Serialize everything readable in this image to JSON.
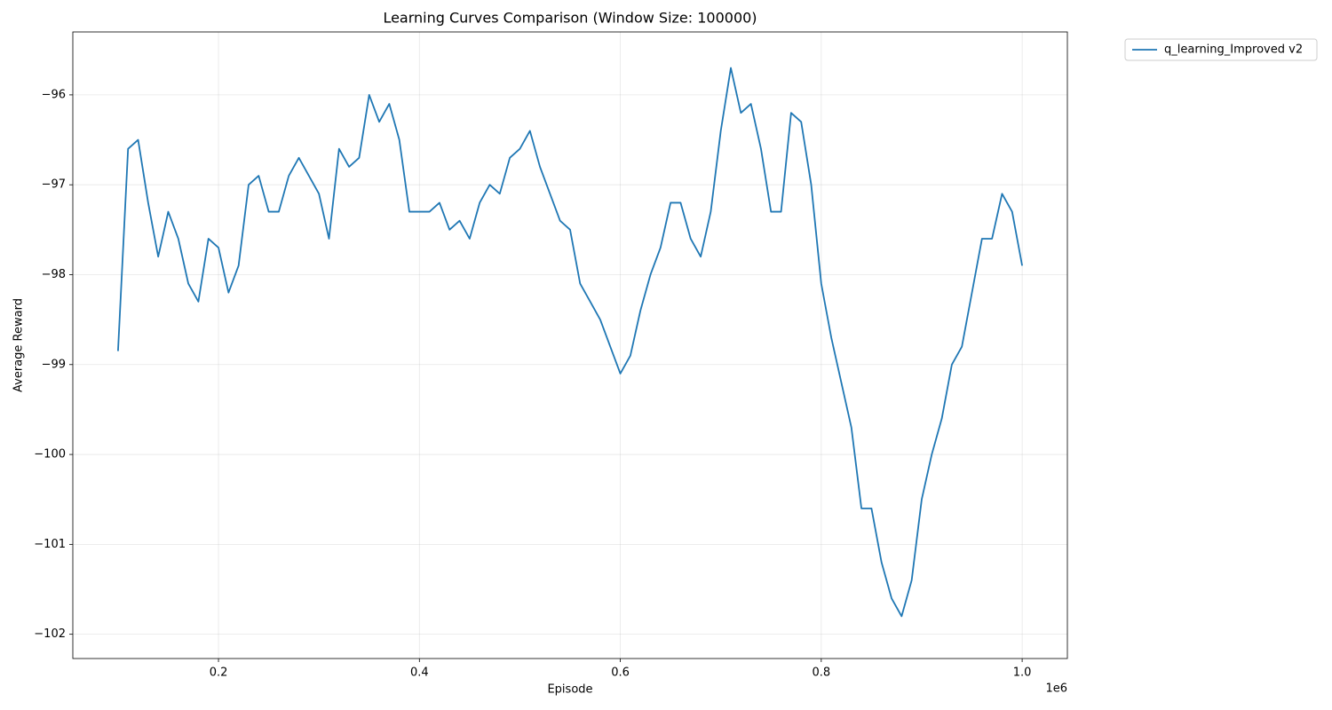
{
  "chart_data": {
    "type": "line",
    "title": "Learning Curves Comparison (Window Size: 100000)",
    "x_label": "Episode",
    "y_label": "Average Reward",
    "x_offset_label": "1e6",
    "x": [
      100000,
      110000,
      120000,
      130000,
      140000,
      150000,
      160000,
      170000,
      180000,
      190000,
      200000,
      210000,
      220000,
      230000,
      240000,
      250000,
      260000,
      270000,
      280000,
      290000,
      300000,
      310000,
      320000,
      330000,
      340000,
      350000,
      360000,
      370000,
      380000,
      390000,
      400000,
      410000,
      420000,
      430000,
      440000,
      450000,
      460000,
      470000,
      480000,
      490000,
      500000,
      510000,
      520000,
      530000,
      540000,
      550000,
      560000,
      570000,
      580000,
      590000,
      600000,
      610000,
      620000,
      630000,
      640000,
      650000,
      660000,
      670000,
      680000,
      690000,
      700000,
      710000,
      720000,
      730000,
      740000,
      750000,
      760000,
      770000,
      780000,
      790000,
      800000,
      810000,
      820000,
      830000,
      840000,
      850000,
      860000,
      870000,
      880000,
      890000,
      900000,
      910000,
      920000,
      930000,
      940000,
      950000,
      960000,
      970000,
      980000,
      990000,
      1000000
    ],
    "series": [
      {
        "name": "q_learning_Improved v2",
        "color": "#1f77b4",
        "values": [
          -98.85,
          -96.6,
          -96.5,
          -97.2,
          -97.8,
          -97.3,
          -97.6,
          -98.1,
          -98.3,
          -97.6,
          -97.7,
          -98.2,
          -97.9,
          -97.0,
          -96.9,
          -97.3,
          -97.3,
          -96.9,
          -96.7,
          -96.9,
          -97.1,
          -97.6,
          -96.6,
          -96.8,
          -96.7,
          -96.0,
          -96.3,
          -96.1,
          -96.5,
          -97.3,
          -97.3,
          -97.3,
          -97.2,
          -97.5,
          -97.4,
          -97.6,
          -97.2,
          -97.0,
          -97.1,
          -96.7,
          -96.6,
          -96.4,
          -96.8,
          -97.1,
          -97.4,
          -97.5,
          -98.1,
          -98.3,
          -98.5,
          -98.8,
          -99.1,
          -98.9,
          -98.4,
          -98.0,
          -97.7,
          -97.2,
          -97.2,
          -97.6,
          -97.8,
          -97.3,
          -96.4,
          -95.7,
          -96.2,
          -96.1,
          -96.6,
          -97.3,
          -97.3,
          -96.2,
          -96.3,
          -97.0,
          -98.1,
          -98.7,
          -99.2,
          -99.7,
          -100.6,
          -100.6,
          -101.2,
          -101.6,
          -101.8,
          -101.4,
          -100.5,
          -100.0,
          -99.6,
          -99.0,
          -98.8,
          -98.2,
          -97.6,
          -97.6,
          -97.1,
          -97.3,
          -97.9
        ]
      }
    ],
    "xlim": [
      55000,
      1045000
    ],
    "ylim": [
      -102.27,
      -95.3
    ],
    "xticks": [
      {
        "value": 200000,
        "label": "0.2"
      },
      {
        "value": 400000,
        "label": "0.4"
      },
      {
        "value": 600000,
        "label": "0.6"
      },
      {
        "value": 800000,
        "label": "0.8"
      },
      {
        "value": 1000000,
        "label": "1.0"
      }
    ],
    "yticks": [
      {
        "value": -102,
        "label": "−102"
      },
      {
        "value": -101,
        "label": "−101"
      },
      {
        "value": -100,
        "label": "−100"
      },
      {
        "value": -99,
        "label": "−99"
      },
      {
        "value": -98,
        "label": "−98"
      },
      {
        "value": -97,
        "label": "−97"
      },
      {
        "value": -96,
        "label": "−96"
      }
    ],
    "grid": true,
    "legend": "outside-upper-right"
  }
}
